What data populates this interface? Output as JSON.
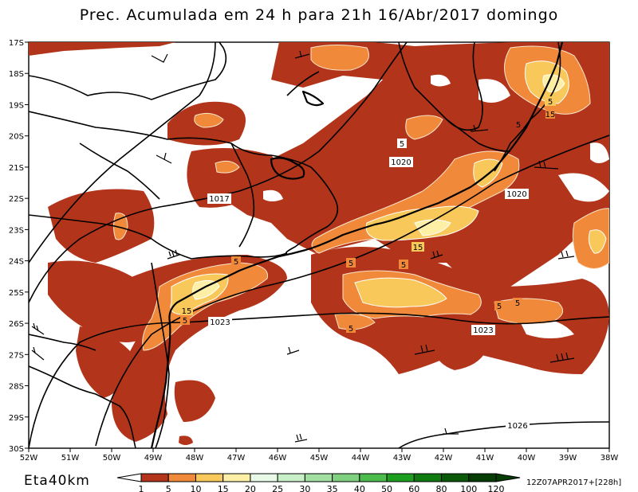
{
  "title": "Prec. Acumulada em 24 h para 21h 16/Abr/2017 domingo",
  "model_label": "Eta40km",
  "run_label": "12Z07APR2017+[228h]",
  "axes": {
    "lon_labels": [
      "52W",
      "51W",
      "50W",
      "49W",
      "48W",
      "47W",
      "46W",
      "45W",
      "44W",
      "43W",
      "42W",
      "41W",
      "40W",
      "39W",
      "38W"
    ],
    "lat_labels": [
      "17S",
      "18S",
      "19S",
      "20S",
      "21S",
      "22S",
      "23S",
      "24S",
      "25S",
      "26S",
      "27S",
      "28S",
      "29S",
      "30S"
    ]
  },
  "colorbar": {
    "labels": [
      "1",
      "5",
      "10",
      "15",
      "20",
      "25",
      "30",
      "35",
      "40",
      "50",
      "60",
      "80",
      "100",
      "120"
    ],
    "colors": [
      "#ffffff",
      "#b2351b",
      "#f0893a",
      "#f8c85a",
      "#fdf0a6",
      "#e8fbe8",
      "#c8f0c8",
      "#a2e0a2",
      "#7fd07f",
      "#4cbc4c",
      "#1e9e1e",
      "#0f7a0f",
      "#0a5a0a",
      "#053d05"
    ]
  },
  "contour_labels": {
    "precip": [
      "5",
      "15",
      "5",
      "5",
      "5",
      "5",
      "15",
      "5",
      "15",
      "5",
      "5",
      "5",
      "5"
    ],
    "pressure": [
      "1017",
      "1020",
      "1020",
      "1023",
      "1023",
      "1026"
    ]
  },
  "colors": {
    "precip_fill_main": "#b2351b",
    "precip_fill_10": "#f0893a",
    "precip_fill_15": "#f8c85a",
    "precip_fill_20": "#fdf0a6"
  }
}
